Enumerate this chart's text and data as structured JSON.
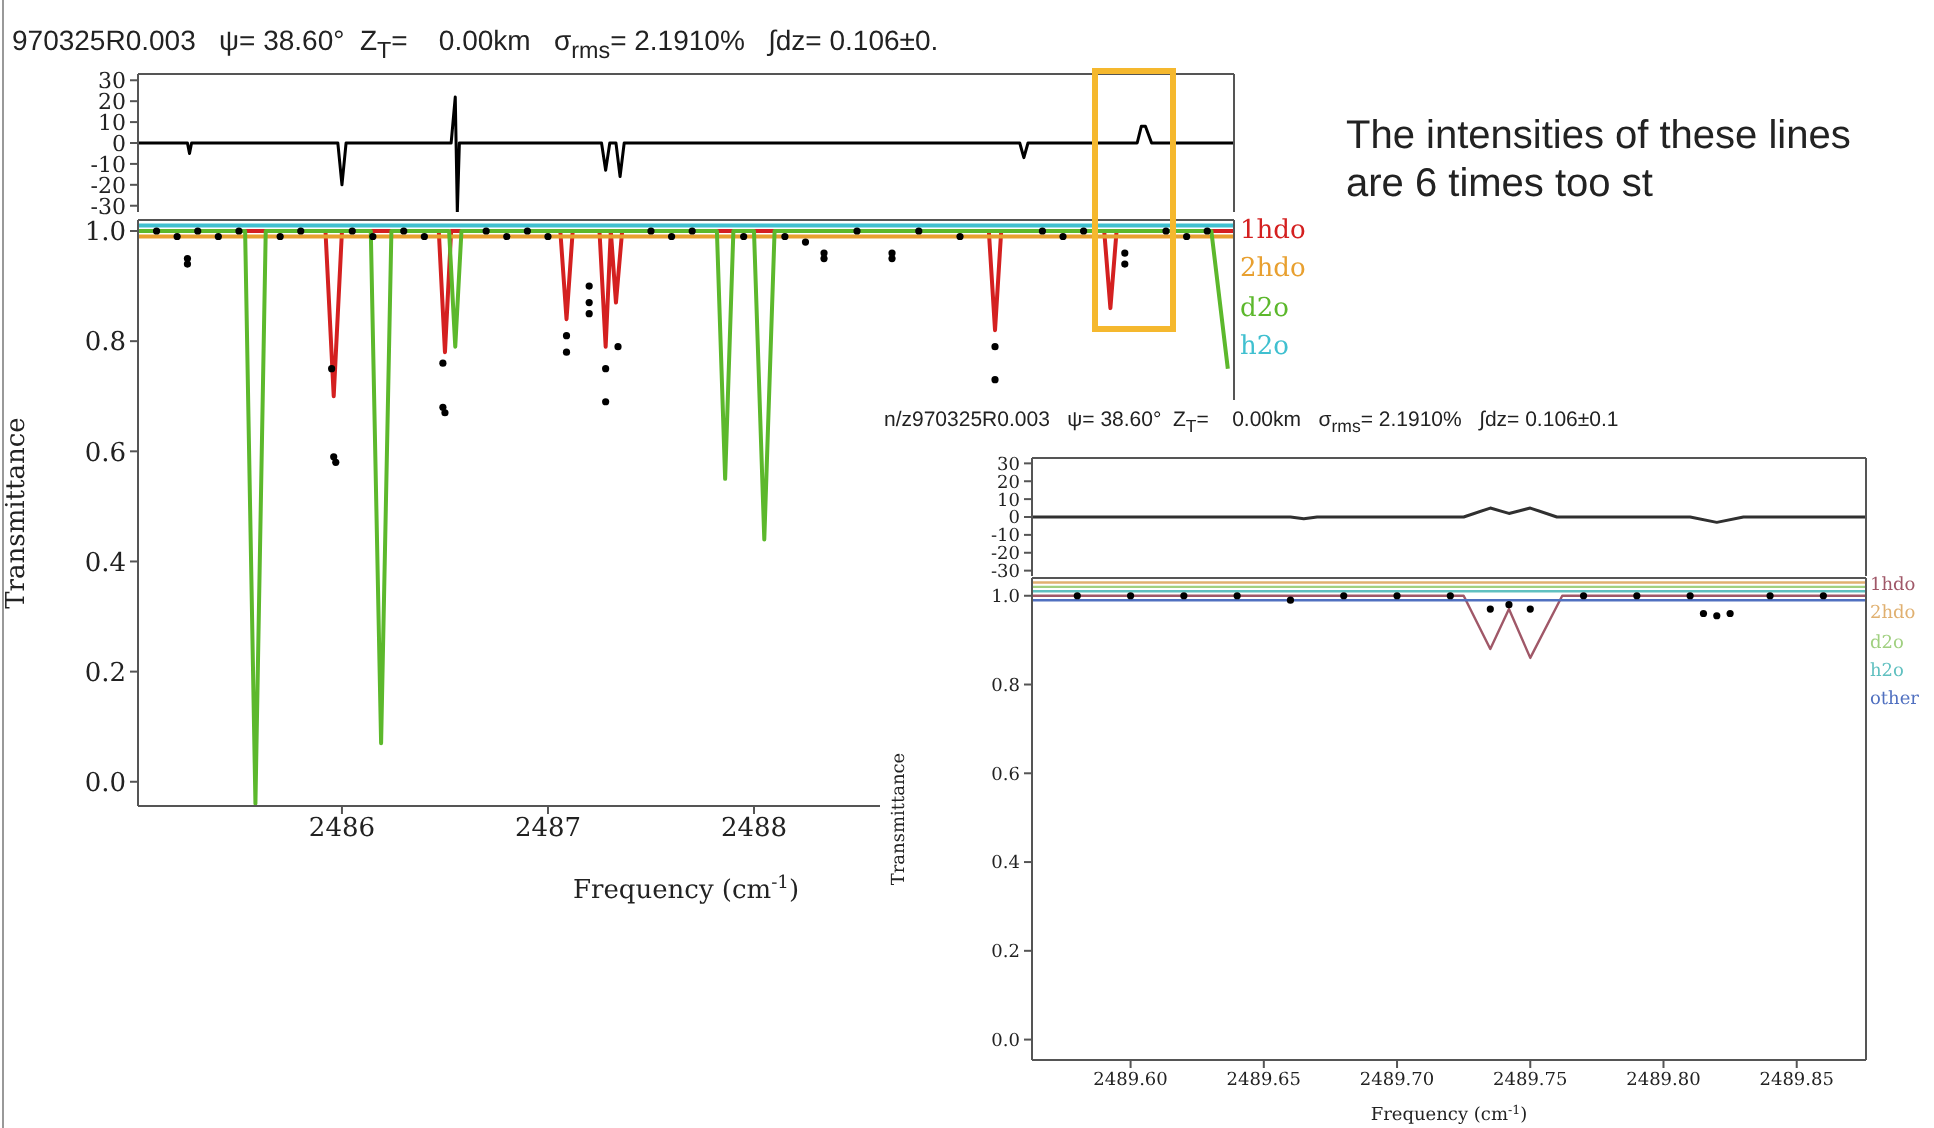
{
  "chart_data": [
    {
      "type": "line",
      "title": "970325R0.003   ψ= 38.60°  Z$_{T}$=    0.00km   σ$_{rms}$= 2.1910%   ∫dz= 0.106±0.",
      "xlim": [
        2485.01,
        2490.33
      ],
      "ylim": [
        -33,
        33
      ],
      "yticks": [
        -30,
        -20,
        -10,
        0,
        10,
        20,
        30
      ],
      "tick_labels": "y",
      "series": [
        {
          "color": "#000000",
          "x": [
            2485.01,
            2485.25,
            2485.26,
            2485.27,
            2485.98,
            2486.0,
            2486.02,
            2486.53,
            2486.55,
            2486.56,
            2486.57,
            2487.26,
            2487.28,
            2487.3,
            2487.33,
            2487.35,
            2487.37,
            2489.29,
            2489.31,
            2489.33,
            2489.86,
            2489.88,
            2489.9,
            2489.93,
            2489.95,
            2490.33
          ],
          "values": [
            0,
            0,
            -5,
            0,
            0,
            -20,
            0,
            0,
            22,
            -33,
            0,
            0,
            -13,
            0,
            0,
            -16,
            0,
            0,
            -7,
            0,
            0,
            8,
            8,
            0,
            0,
            0
          ]
        }
      ]
    },
    {
      "type": "line",
      "xlabel": "Frequency (cm$^{-1}$)",
      "ylabel": "Transmittance",
      "xlim": [
        2485.01,
        2490.33
      ],
      "xticks": [
        2486,
        2487,
        2488
      ],
      "ylim": [
        -0.044,
        1.02
      ],
      "yticks": [
        {
          "value": 0,
          "label": "0.0"
        },
        {
          "value": 0.2,
          "label": "0.2"
        },
        {
          "value": 0.4,
          "label": "0.4"
        },
        {
          "value": 0.6,
          "label": "0.6"
        },
        {
          "value": 0.8,
          "label": "0.8"
        },
        {
          "value": 1,
          "label": "1.0"
        }
      ],
      "legend": "right",
      "annotations": [
        "The intensities of these lines are 6 times too st"
      ],
      "series": [
        {
          "name": "1hdo",
          "color": "#d42020",
          "x": [
            2485.01,
            2485.92,
            2485.96,
            2486.0,
            2486.47,
            2486.5,
            2486.53,
            2487.06,
            2487.09,
            2487.12,
            2487.25,
            2487.28,
            2487.305,
            2487.33,
            2487.36,
            2489.14,
            2489.17,
            2489.2,
            2489.7,
            2489.73,
            2489.76,
            2490.33
          ],
          "values": [
            1,
            1,
            0.7,
            1,
            1,
            0.78,
            1,
            1,
            0.84,
            1,
            1,
            0.79,
            1,
            0.87,
            1,
            1,
            0.82,
            1,
            1,
            0.86,
            1,
            1
          ]
        },
        {
          "name": "2hdo",
          "color": "#e8a030",
          "x": [
            2485.01,
            2490.33
          ],
          "values": [
            0.99,
            0.99
          ]
        },
        {
          "name": "d2o",
          "color": "#5cb82c",
          "x": [
            2485.01,
            2485.53,
            2485.58,
            2485.63,
            2486.14,
            2486.19,
            2486.24,
            2486.52,
            2486.55,
            2486.58,
            2487.82,
            2487.86,
            2487.9,
            2488.0,
            2488.05,
            2488.1,
            2490.22,
            2490.3
          ],
          "values": [
            1,
            1,
            -0.04,
            1,
            1,
            0.07,
            1,
            1,
            0.79,
            1,
            1,
            0.55,
            1,
            1,
            0.44,
            1,
            1,
            0.75
          ]
        },
        {
          "name": "h2o",
          "color": "#40c0d0",
          "x": [
            2485.01,
            2490.33
          ],
          "values": [
            1.01,
            1.01
          ]
        },
        {
          "type": "scatter",
          "color": "#000000",
          "x": [
            2485.1,
            2485.2,
            2485.25,
            2485.25,
            2485.3,
            2485.4,
            2485.5,
            2485.7,
            2485.8,
            2485.95,
            2485.96,
            2485.97,
            2486.05,
            2486.15,
            2486.3,
            2486.4,
            2486.49,
            2486.49,
            2486.5,
            2486.7,
            2486.8,
            2486.9,
            2487.0,
            2487.09,
            2487.09,
            2487.2,
            2487.2,
            2487.2,
            2487.28,
            2487.28,
            2487.34,
            2487.5,
            2487.6,
            2487.7,
            2487.95,
            2488.15,
            2488.25,
            2488.34,
            2488.34,
            2488.5,
            2488.67,
            2488.67,
            2488.8,
            2489.0,
            2489.17,
            2489.17,
            2489.4,
            2489.5,
            2489.6,
            2489.8,
            2489.8,
            2490.0,
            2490.1,
            2490.2
          ],
          "values": [
            1,
            0.99,
            0.95,
            0.94,
            1,
            0.99,
            1,
            0.99,
            1,
            0.75,
            0.59,
            0.58,
            1,
            0.99,
            1,
            0.99,
            0.76,
            0.68,
            0.67,
            1,
            0.99,
            1,
            0.99,
            0.81,
            0.78,
            0.9,
            0.87,
            0.85,
            0.75,
            0.69,
            0.79,
            1,
            0.99,
            1,
            0.99,
            0.99,
            0.98,
            0.96,
            0.95,
            1,
            0.96,
            0.95,
            1,
            0.99,
            0.79,
            0.73,
            1,
            0.99,
            1,
            0.96,
            0.94,
            1,
            0.99,
            1
          ]
        }
      ]
    },
    {
      "type": "line",
      "title": "n/z970325R0.003   ψ= 38.60°  Z$_{T}$=    0.00km   σ$_{rms}$= 2.1910%   ∫dz= 0.106±0.1",
      "xlim": [
        2489.563,
        2489.876
      ],
      "ylim": [
        -33,
        33
      ],
      "yticks": [
        -30,
        -20,
        -10,
        0,
        10,
        20,
        30
      ],
      "tick_labels": "y",
      "series": [
        {
          "color": "#303030",
          "x": [
            2489.563,
            2489.66,
            2489.665,
            2489.67,
            2489.725,
            2489.735,
            2489.742,
            2489.75,
            2489.76,
            2489.81,
            2489.82,
            2489.83,
            2489.876
          ],
          "values": [
            0,
            0,
            -1,
            0,
            0,
            5,
            2,
            5,
            0,
            0,
            -3,
            0,
            0
          ]
        }
      ]
    },
    {
      "type": "line",
      "xlabel": "Frequency (cm$^{-1}$)",
      "ylabel": "Transmittance",
      "xlim": [
        2489.563,
        2489.876
      ],
      "xticks": [
        {
          "value": 2489.6,
          "label": "2489.60"
        },
        {
          "value": 2489.65,
          "label": "2489.65"
        },
        {
          "value": 2489.7,
          "label": "2489.70"
        },
        {
          "value": 2489.75,
          "label": "2489.75"
        },
        {
          "value": 2489.8,
          "label": "2489.80"
        },
        {
          "value": 2489.85,
          "label": "2489.85"
        }
      ],
      "ylim": [
        -0.046,
        1.04
      ],
      "yticks": [
        {
          "value": 0,
          "label": "0.0"
        },
        {
          "value": 0.2,
          "label": "0.2"
        },
        {
          "value": 0.4,
          "label": "0.4"
        },
        {
          "value": 0.6,
          "label": "0.6"
        },
        {
          "value": 0.8,
          "label": "0.8"
        },
        {
          "value": 1,
          "label": "1.0"
        }
      ],
      "legend": "right",
      "series": [
        {
          "name": "1hdo",
          "color": "#a05868",
          "x": [
            2489.563,
            2489.725,
            2489.735,
            2489.742,
            2489.75,
            2489.762,
            2489.876
          ],
          "values": [
            1,
            1,
            0.88,
            0.97,
            0.86,
            1,
            1
          ]
        },
        {
          "name": "2hdo",
          "color": "#e0b070",
          "x": [
            2489.563,
            2489.876
          ],
          "values": [
            1.03,
            1.03
          ]
        },
        {
          "name": "d2o",
          "color": "#a0d080",
          "x": [
            2489.563,
            2489.876
          ],
          "values": [
            1.02,
            1.02
          ]
        },
        {
          "name": "h2o",
          "color": "#60c0c0",
          "x": [
            2489.563,
            2489.876
          ],
          "values": [
            1.01,
            1.01
          ]
        },
        {
          "name": "other",
          "color": "#5070c0",
          "x": [
            2489.563,
            2489.876
          ],
          "values": [
            0.99,
            0.99
          ]
        },
        {
          "type": "scatter",
          "color": "#000000",
          "x": [
            2489.58,
            2489.6,
            2489.62,
            2489.64,
            2489.66,
            2489.68,
            2489.7,
            2489.72,
            2489.735,
            2489.742,
            2489.75,
            2489.77,
            2489.79,
            2489.81,
            2489.815,
            2489.82,
            2489.825,
            2489.84,
            2489.86
          ],
          "values": [
            1,
            1,
            1,
            1,
            0.99,
            1,
            1,
            1,
            0.97,
            0.98,
            0.97,
            1,
            1,
            1,
            0.96,
            0.955,
            0.96,
            1,
            1
          ]
        }
      ]
    }
  ]
}
